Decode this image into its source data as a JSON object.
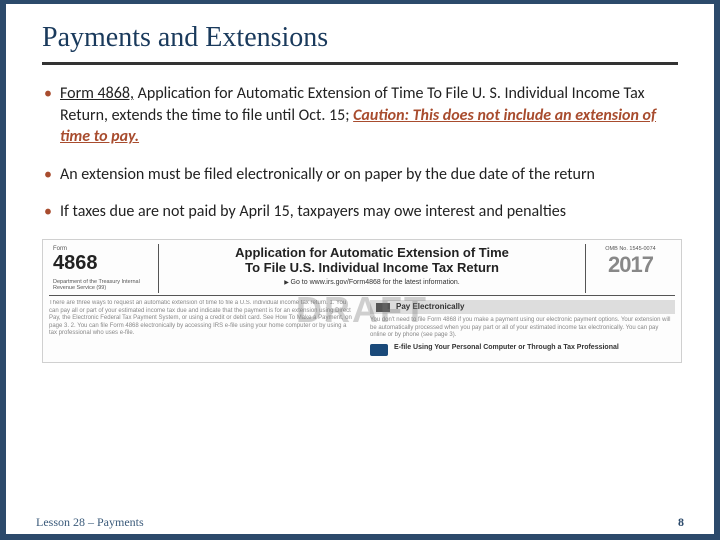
{
  "slide": {
    "title": "Payments and Extensions",
    "bullets": [
      {
        "link_text": "Form 4868,",
        "rest": " Application for Automatic Extension of Time To File U. S. Individual Income Tax Return, extends the time to file until Oct. 15; ",
        "caution": "Caution: This does not include an extension of time to pay."
      },
      {
        "text": "An extension must be filed electronically or on paper by the due date of the return"
      },
      {
        "text": "If taxes due are not paid by April 15, taxpayers may owe interest and penalties"
      }
    ]
  },
  "form": {
    "form_label": "Form",
    "number": "4868",
    "dept": "Department of the Treasury\nInternal Revenue Service (99)",
    "title_line1": "Application for Automatic Extension of Time",
    "title_line2": "To File U.S. Individual Income Tax Return",
    "goto": "Go to www.irs.gov/Form4868 for the latest information.",
    "omb": "OMB No. 1545-0074",
    "year": "2017",
    "left_para": "There are three ways to request an automatic extension of time to file a U.S. individual income tax return.\n1. You can pay all or part of your estimated income tax due and indicate that the payment is for an extension using Direct Pay, the Electronic Federal Tax Payment System, or using a credit or debit card. See How To Make a Payment, on page 3.\n2. You can file Form 4868 electronically by accessing IRS e-file using your home computer or by using a tax professional who uses e-file.",
    "pay_header": "Pay Electronically",
    "right_para": "You don't need to file Form 4868 if you make a payment using our electronic payment options. Your extension will be automatically processed when you pay part or all of your estimated income tax electronically. You can pay online or by phone (see page 3).",
    "efile": "E-file Using Your Personal Computer or Through a Tax Professional",
    "watermark": "DRAFT"
  },
  "footer": {
    "lesson": "Lesson 28 – Payments",
    "page": "8"
  },
  "colors": {
    "border": "#2c4a6b",
    "title": "#1a3a5c",
    "bullet_marker": "#a84c2e",
    "caution": "#a84c2e",
    "footer_text": "#3a5a7a"
  }
}
